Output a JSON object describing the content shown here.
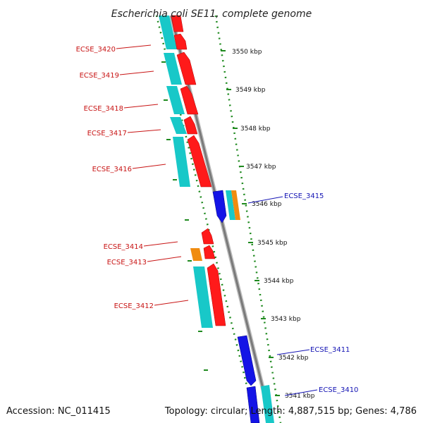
{
  "header": {
    "title": "Escherichia coli SE11, complete genome"
  },
  "footer": {
    "accession": "Accession: NC_011415",
    "summary": "Topology: circular; Length: 4,887,515 bp; Genes: 4,786"
  },
  "colors": {
    "background": "#ffffff",
    "backbone": "#8c8c8c",
    "tick_dotted": "#1f8a1f",
    "gene_forward": "#ff1a1a",
    "gene_reverse": "#1414e6",
    "cds_cyan": "#18c8c8",
    "gene_orange": "#f08c10",
    "label_forward": "#c81414",
    "label_reverse": "#1414b4"
  },
  "ticks": [
    "3550 kbp",
    "3549 kbp",
    "3548 kbp",
    "3547 kbp",
    "3546 kbp",
    "3545 kbp",
    "3544 kbp",
    "3543 kbp",
    "3542 kbp",
    "3541 kbp"
  ],
  "gene_labels_forward": [
    "ECSE_3420",
    "ECSE_3419",
    "ECSE_3418",
    "ECSE_3417",
    "ECSE_3416",
    "ECSE_3414",
    "ECSE_3413",
    "ECSE_3412"
  ],
  "gene_labels_reverse": [
    "ECSE_3415",
    "ECSE_3411",
    "ECSE_3410"
  ]
}
